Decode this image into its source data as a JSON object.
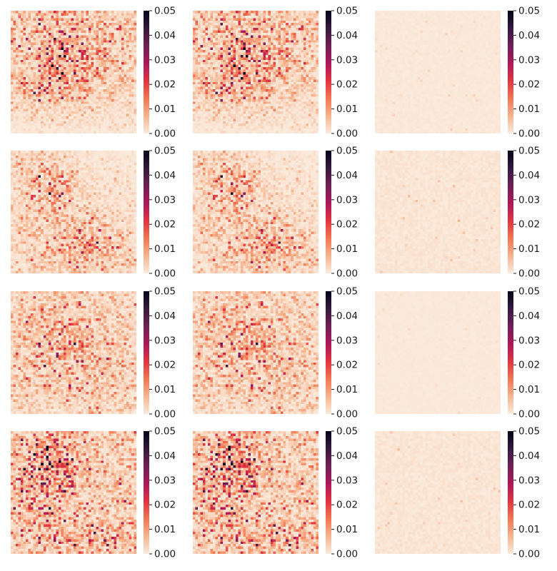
{
  "chart_data": {
    "type": "heatmap",
    "layout": {
      "rows": 4,
      "cols": 3
    },
    "grid_resolution": [
      50,
      50
    ],
    "colormap": "rocket_r",
    "colormap_stops": [
      "#faebdd",
      "#f6b48f",
      "#f37651",
      "#e13342",
      "#ad1759",
      "#701f57",
      "#35193e",
      "#03051a"
    ],
    "colorbar": {
      "min": 0.0,
      "max": 0.05,
      "ticks": [
        "0.00",
        "0.01",
        "0.02",
        "0.03",
        "0.04",
        "0.05"
      ]
    },
    "axes_visible": false,
    "panels": [
      {
        "row": 1,
        "col": 1,
        "pattern": "dense cluster upper-center",
        "mean_value": 0.012,
        "peak_value": 0.05
      },
      {
        "row": 1,
        "col": 2,
        "pattern": "dense cluster upper-center",
        "mean_value": 0.012,
        "peak_value": 0.05
      },
      {
        "row": 1,
        "col": 3,
        "pattern": "near zero everywhere",
        "mean_value": 0.0005,
        "peak_value": 0.003
      },
      {
        "row": 2,
        "col": 1,
        "pattern": "clusters upper-left and lower-center",
        "mean_value": 0.01,
        "peak_value": 0.05
      },
      {
        "row": 2,
        "col": 2,
        "pattern": "clusters upper-left and lower-center",
        "mean_value": 0.01,
        "peak_value": 0.05
      },
      {
        "row": 2,
        "col": 3,
        "pattern": "near zero everywhere",
        "mean_value": 0.001,
        "peak_value": 0.006
      },
      {
        "row": 3,
        "col": 1,
        "pattern": "scattered diagonal band",
        "mean_value": 0.009,
        "peak_value": 0.045
      },
      {
        "row": 3,
        "col": 2,
        "pattern": "scattered diagonal band",
        "mean_value": 0.009,
        "peak_value": 0.045
      },
      {
        "row": 3,
        "col": 3,
        "pattern": "near zero everywhere",
        "mean_value": 0.0004,
        "peak_value": 0.002
      },
      {
        "row": 4,
        "col": 1,
        "pattern": "dense cluster upper-left-center",
        "mean_value": 0.013,
        "peak_value": 0.05
      },
      {
        "row": 4,
        "col": 2,
        "pattern": "dense cluster upper-left-center",
        "mean_value": 0.013,
        "peak_value": 0.05
      },
      {
        "row": 4,
        "col": 3,
        "pattern": "near zero everywhere",
        "mean_value": 0.001,
        "peak_value": 0.005
      }
    ]
  }
}
